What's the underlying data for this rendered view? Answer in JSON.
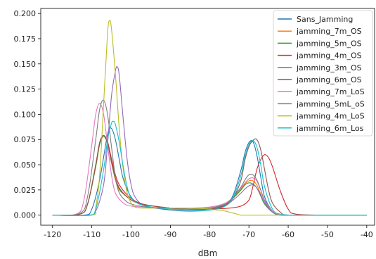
{
  "chart_data": {
    "type": "line",
    "title": "",
    "xlabel": "dBm",
    "ylabel": "",
    "xlim": [
      -123,
      -38
    ],
    "ylim": [
      -0.01,
      0.205
    ],
    "x_ticks": [
      -120,
      -110,
      -100,
      -90,
      -80,
      -70,
      -60,
      -50,
      -40
    ],
    "x_tick_labels": [
      "-120",
      "-110",
      "-100",
      "-90",
      "-80",
      "-70",
      "-60",
      "-50",
      "-40"
    ],
    "y_ticks": [
      0.0,
      0.025,
      0.05,
      0.075,
      0.1,
      0.125,
      0.15,
      0.175,
      0.2
    ],
    "y_tick_labels": [
      "0.000",
      "0.025",
      "0.050",
      "0.075",
      "0.100",
      "0.125",
      "0.150",
      "0.175",
      "0.200"
    ],
    "grid": false,
    "legend_position": "top-right",
    "series": [
      {
        "name": "Sans_Jamming",
        "color": "#1f77b4",
        "x": [
          -120,
          -112,
          -110,
          -108,
          -106,
          -105,
          -104,
          -103,
          -102,
          -100,
          -98,
          -95,
          -90,
          -85,
          -80,
          -76,
          -74,
          -72,
          -71,
          -70,
          -69,
          -68,
          -67,
          -66,
          -64,
          -62,
          -60,
          -58,
          -50,
          -40
        ],
        "y": [
          0.0,
          0.0,
          0.006,
          0.035,
          0.08,
          0.086,
          0.075,
          0.055,
          0.036,
          0.018,
          0.012,
          0.008,
          0.005,
          0.004,
          0.005,
          0.01,
          0.02,
          0.045,
          0.062,
          0.072,
          0.073,
          0.06,
          0.038,
          0.018,
          0.004,
          0.0,
          0.0,
          0.0,
          0.0,
          0.0
        ]
      },
      {
        "name": "jamming_7m_OS",
        "color": "#ff7f0e",
        "x": [
          -120,
          -113,
          -111,
          -109,
          -108,
          -107,
          -106,
          -105,
          -104,
          -103,
          -101,
          -99,
          -96,
          -90,
          -85,
          -80,
          -76,
          -74,
          -72,
          -71,
          -70,
          -69,
          -68,
          -67,
          -66,
          -64,
          -62,
          -58,
          -50,
          -40
        ],
        "y": [
          0.0,
          0.001,
          0.012,
          0.05,
          0.072,
          0.079,
          0.072,
          0.052,
          0.035,
          0.025,
          0.018,
          0.013,
          0.01,
          0.007,
          0.006,
          0.007,
          0.011,
          0.017,
          0.026,
          0.031,
          0.034,
          0.034,
          0.03,
          0.021,
          0.012,
          0.003,
          0.0,
          0.0,
          0.0,
          0.0
        ]
      },
      {
        "name": "jamming_5m_OS",
        "color": "#2ca02c",
        "x": [
          -120,
          -113,
          -111,
          -109,
          -108,
          -107,
          -106,
          -105,
          -104,
          -103,
          -101,
          -99,
          -96,
          -90,
          -85,
          -80,
          -76,
          -74,
          -72,
          -71,
          -70,
          -69,
          -68,
          -67,
          -66,
          -64,
          -62,
          -58,
          -50,
          -40
        ],
        "y": [
          0.0,
          0.001,
          0.012,
          0.048,
          0.07,
          0.078,
          0.071,
          0.053,
          0.036,
          0.026,
          0.018,
          0.013,
          0.01,
          0.007,
          0.006,
          0.007,
          0.011,
          0.017,
          0.025,
          0.03,
          0.032,
          0.031,
          0.027,
          0.019,
          0.011,
          0.003,
          0.0,
          0.0,
          0.0,
          0.0
        ]
      },
      {
        "name": "jamming_4m_OS",
        "color": "#d62728",
        "x": [
          -120,
          -113,
          -111,
          -109,
          -108,
          -107,
          -106,
          -105,
          -104,
          -103,
          -101,
          -99,
          -96,
          -90,
          -85,
          -80,
          -75,
          -72,
          -70,
          -69,
          -68,
          -67,
          -66,
          -65,
          -64,
          -62,
          -60,
          -58,
          -50,
          -40
        ],
        "y": [
          0.0,
          0.001,
          0.012,
          0.05,
          0.072,
          0.079,
          0.073,
          0.056,
          0.04,
          0.03,
          0.02,
          0.014,
          0.01,
          0.007,
          0.006,
          0.006,
          0.007,
          0.009,
          0.015,
          0.028,
          0.045,
          0.055,
          0.06,
          0.057,
          0.048,
          0.024,
          0.006,
          0.001,
          0.0,
          0.0
        ]
      },
      {
        "name": "jamming_3m_OS",
        "color": "#9467bd",
        "x": [
          -120,
          -111,
          -109,
          -107,
          -106,
          -105,
          -104,
          -103.5,
          -103,
          -102,
          -101,
          -100,
          -99,
          -97,
          -94,
          -90,
          -85,
          -80,
          -76,
          -74,
          -72,
          -71,
          -70,
          -69,
          -68,
          -67,
          -66,
          -64,
          -62,
          -58,
          -50,
          -40
        ],
        "y": [
          0.0,
          0.0,
          0.004,
          0.03,
          0.07,
          0.118,
          0.143,
          0.147,
          0.138,
          0.095,
          0.055,
          0.03,
          0.018,
          0.01,
          0.007,
          0.006,
          0.006,
          0.007,
          0.01,
          0.015,
          0.022,
          0.026,
          0.029,
          0.03,
          0.027,
          0.02,
          0.012,
          0.003,
          0.0,
          0.0,
          0.0,
          0.0
        ]
      },
      {
        "name": "jamming_6m_OS",
        "color": "#8c564b",
        "x": [
          -120,
          -113,
          -111,
          -109,
          -108,
          -107,
          -106,
          -105,
          -104,
          -103,
          -101,
          -99,
          -96,
          -90,
          -85,
          -80,
          -76,
          -74,
          -72,
          -71,
          -70,
          -69,
          -68,
          -67,
          -66,
          -65,
          -64,
          -62,
          -60,
          -50,
          -40
        ],
        "y": [
          0.0,
          0.001,
          0.012,
          0.05,
          0.072,
          0.079,
          0.072,
          0.053,
          0.037,
          0.027,
          0.018,
          0.013,
          0.01,
          0.007,
          0.006,
          0.006,
          0.01,
          0.017,
          0.035,
          0.055,
          0.068,
          0.074,
          0.075,
          0.065,
          0.045,
          0.025,
          0.012,
          0.003,
          0.0,
          0.0,
          0.0
        ]
      },
      {
        "name": "jamming_7m_LoS",
        "color": "#e377c2",
        "x": [
          -120,
          -114,
          -112,
          -110,
          -109,
          -108,
          -107,
          -106,
          -105,
          -104,
          -102,
          -100,
          -97,
          -92,
          -85,
          -80,
          -76,
          -74,
          -72,
          -71,
          -70,
          -69,
          -68,
          -67,
          -66,
          -64,
          -62,
          -58,
          -50,
          -40
        ],
        "y": [
          0.0,
          0.001,
          0.015,
          0.07,
          0.1,
          0.111,
          0.1,
          0.07,
          0.04,
          0.022,
          0.012,
          0.009,
          0.008,
          0.007,
          0.007,
          0.008,
          0.012,
          0.018,
          0.027,
          0.032,
          0.036,
          0.037,
          0.034,
          0.025,
          0.015,
          0.004,
          0.0,
          0.0,
          0.0,
          0.0
        ]
      },
      {
        "name": "jamming_5mL_oS",
        "color": "#7f7f7f",
        "x": [
          -120,
          -113,
          -111,
          -109,
          -108,
          -107,
          -106,
          -105,
          -104,
          -103,
          -101,
          -99,
          -96,
          -90,
          -85,
          -80,
          -76,
          -74,
          -72,
          -71,
          -70,
          -69,
          -68,
          -67,
          -66,
          -64,
          -62,
          -58,
          -50,
          -40
        ],
        "y": [
          0.0,
          0.002,
          0.02,
          0.075,
          0.105,
          0.114,
          0.1,
          0.068,
          0.038,
          0.022,
          0.013,
          0.01,
          0.008,
          0.007,
          0.006,
          0.007,
          0.011,
          0.018,
          0.028,
          0.035,
          0.04,
          0.04,
          0.035,
          0.025,
          0.014,
          0.003,
          0.0,
          0.0,
          0.0,
          0.0
        ]
      },
      {
        "name": "jamming_4m_LoS",
        "color": "#bcbd22",
        "x": [
          -120,
          -110,
          -109,
          -108,
          -107,
          -106,
          -105.5,
          -105,
          -104,
          -103,
          -102,
          -101,
          -100,
          -99,
          -97,
          -94,
          -90,
          -85,
          -80,
          -78,
          -76,
          -75,
          -74,
          -73,
          -72,
          -70,
          -60,
          -50,
          -40
        ],
        "y": [
          0.0,
          0.0,
          0.008,
          0.04,
          0.11,
          0.18,
          0.193,
          0.185,
          0.14,
          0.085,
          0.045,
          0.022,
          0.012,
          0.008,
          0.007,
          0.007,
          0.007,
          0.007,
          0.006,
          0.005,
          0.004,
          0.003,
          0.002,
          0.001,
          0.0,
          0.0,
          0.0,
          0.0,
          0.0
        ]
      },
      {
        "name": "jamming_6m_Los",
        "color": "#17becf",
        "x": [
          -120,
          -111,
          -109,
          -107,
          -106,
          -105,
          -104.5,
          -104,
          -103,
          -102,
          -101,
          -100,
          -98,
          -95,
          -90,
          -85,
          -80,
          -76,
          -74,
          -72,
          -71,
          -70,
          -69,
          -68,
          -67,
          -66,
          -64,
          -62,
          -58,
          -50,
          -40
        ],
        "y": [
          0.0,
          0.0,
          0.006,
          0.045,
          0.075,
          0.091,
          0.093,
          0.09,
          0.072,
          0.048,
          0.028,
          0.017,
          0.011,
          0.008,
          0.006,
          0.005,
          0.005,
          0.009,
          0.018,
          0.04,
          0.058,
          0.07,
          0.074,
          0.068,
          0.05,
          0.028,
          0.006,
          0.001,
          0.0,
          0.0,
          0.0
        ]
      }
    ]
  }
}
